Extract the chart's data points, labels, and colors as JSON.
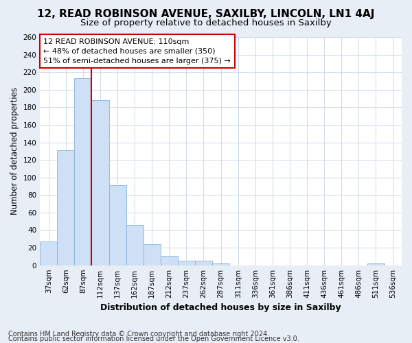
{
  "title1": "12, READ ROBINSON AVENUE, SAXILBY, LINCOLN, LN1 4AJ",
  "title2": "Size of property relative to detached houses in Saxilby",
  "xlabel": "Distribution of detached houses by size in Saxilby",
  "ylabel": "Number of detached properties",
  "footnote1": "Contains HM Land Registry data © Crown copyright and database right 2024.",
  "footnote2": "Contains public sector information licensed under the Open Government Licence v3.0.",
  "categories": [
    "37sqm",
    "62sqm",
    "87sqm",
    "112sqm",
    "137sqm",
    "162sqm",
    "187sqm",
    "212sqm",
    "237sqm",
    "262sqm",
    "287sqm",
    "311sqm",
    "336sqm",
    "361sqm",
    "386sqm",
    "411sqm",
    "436sqm",
    "461sqm",
    "486sqm",
    "511sqm",
    "536sqm"
  ],
  "values": [
    27,
    131,
    213,
    188,
    91,
    46,
    24,
    11,
    5,
    5,
    2,
    0,
    0,
    0,
    0,
    0,
    0,
    0,
    0,
    2,
    0
  ],
  "bar_color": "#cde0f5",
  "bar_edge_color": "#8ab4d8",
  "grid_color": "#c5d5e5",
  "vline_x_index": 3,
  "vline_color": "#cc0000",
  "annotation_text": "12 READ ROBINSON AVENUE: 110sqm\n← 48% of detached houses are smaller (350)\n51% of semi-detached houses are larger (375) →",
  "annotation_box_color": "white",
  "annotation_box_edgecolor": "#cc0000",
  "annotation_fontsize": 8,
  "ylim": [
    0,
    260
  ],
  "yticks": [
    0,
    20,
    40,
    60,
    80,
    100,
    120,
    140,
    160,
    180,
    200,
    220,
    240,
    260
  ],
  "background_color": "#e8eef5",
  "ax_background_color": "white",
  "title1_fontsize": 11,
  "title2_fontsize": 9.5,
  "xlabel_fontsize": 9,
  "ylabel_fontsize": 8.5,
  "tick_fontsize": 7.5,
  "footnote_fontsize": 7
}
